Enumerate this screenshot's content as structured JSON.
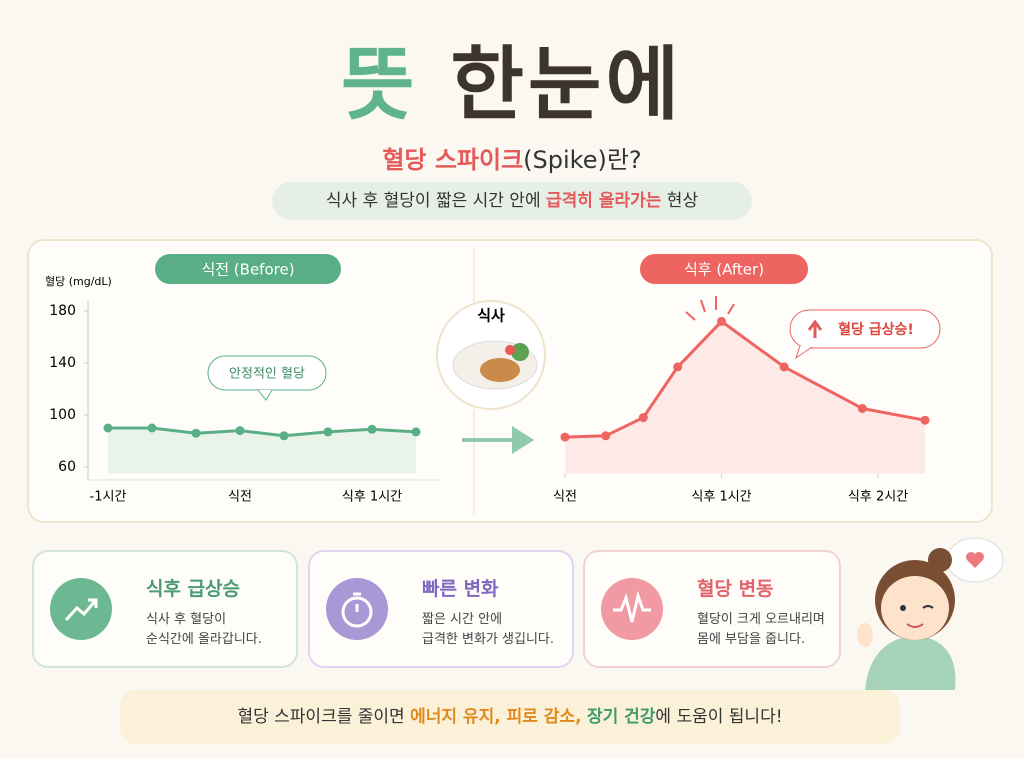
{
  "header": {
    "title_parts": [
      "뜻",
      "한눈에"
    ],
    "subtitle_parts": [
      "혈당 스파이크",
      "(Spike)란?"
    ],
    "description_parts": [
      "식사 후 혈당이 짧은 시간 안에 ",
      "급격히 올라가는",
      " 현상"
    ]
  },
  "chart_data": [
    {
      "type": "line",
      "title": "식전 (Before)",
      "y_label": "혈당 (mg/dL)",
      "annotation": "안정적인 혈당",
      "categories": [
        "-1시간",
        null,
        null,
        "식전",
        null,
        null,
        "식후 1시간",
        null
      ],
      "values": [
        90,
        90,
        86,
        88,
        84,
        87,
        89,
        87
      ],
      "color": "#5aae86",
      "ylim": [
        55,
        185
      ],
      "yticks": [
        60,
        100,
        140,
        180
      ],
      "area": true
    },
    {
      "type": "line",
      "title": "식후 (After)",
      "annotation": "혈당 급상승!",
      "x": [
        0,
        0.26,
        0.5,
        0.72,
        1,
        1.4,
        1.9,
        2.3
      ],
      "xlim": [
        0,
        2.3
      ],
      "xticks": [
        {
          "value": 0,
          "label": "식전"
        },
        {
          "value": 1,
          "label": "식후 1시간"
        },
        {
          "value": 2,
          "label": "식후 2시간"
        }
      ],
      "values": [
        83,
        84,
        98,
        137,
        172,
        137,
        105,
        96
      ],
      "color": "#ee6461",
      "ylim": [
        55,
        185
      ],
      "area": true
    }
  ],
  "meal_label": "식사",
  "cards": [
    {
      "title": "식후 급상승",
      "lines": [
        "식사 후 혈당이",
        "순식간에 올라갑니다."
      ]
    },
    {
      "title": "빠른 변화",
      "lines": [
        "짧은 시간 안에",
        "급격한 변화가 생깁니다."
      ]
    },
    {
      "title": "혈당 변동",
      "lines": [
        "혈당이 크게 오르내리며",
        "몸에 부담을 줍니다."
      ]
    }
  ],
  "footer_parts": [
    "혈당 스파이크를 줄이면 ",
    "에너지 유지, 피로 감소,",
    " ",
    "장기 건강",
    "에 도움이 됩니다!"
  ]
}
